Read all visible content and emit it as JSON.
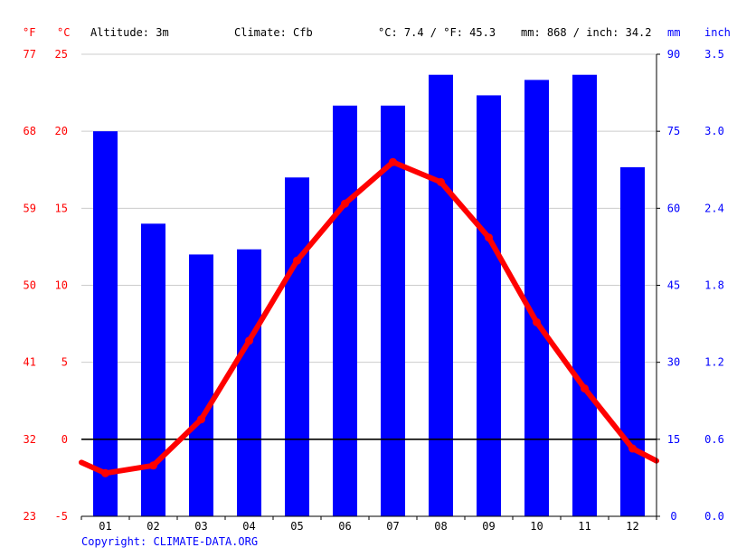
{
  "header": {
    "unit_f": "°F",
    "unit_c": "°C",
    "altitude": "Altitude: 3m",
    "climate": "Climate: Cfb",
    "avg_temp": "°C: 7.4 / °F: 45.3",
    "precip": "mm: 868 / inch: 34.2",
    "unit_mm": "mm",
    "unit_inch": "inch"
  },
  "copyright": "Copyright: CLIMATE-DATA.ORG",
  "colors": {
    "temperature": "#ff0000",
    "precipitation": "#0000ff",
    "grid": "#cccccc",
    "zero_line": "#000000"
  },
  "chart_data": {
    "type": "bar",
    "categories": [
      "01",
      "02",
      "03",
      "04",
      "05",
      "06",
      "07",
      "08",
      "09",
      "10",
      "11",
      "12"
    ],
    "series": [
      {
        "kind": "bar",
        "unit": "mm",
        "values": [
          75,
          57,
          51,
          52,
          66,
          80,
          80,
          86,
          82,
          85,
          86,
          68
        ]
      },
      {
        "kind": "line",
        "unit": "°C",
        "values": [
          -2.2,
          -1.7,
          1.3,
          6.4,
          11.6,
          15.3,
          18.0,
          16.7,
          13.1,
          7.6,
          3.3,
          -0.6
        ],
        "edge_left": -1.5,
        "edge_right": -1.4
      }
    ],
    "axes": {
      "celsius": {
        "ticks": [
          "-5",
          "0",
          "5",
          "10",
          "15",
          "20",
          "25"
        ],
        "range": [
          -5,
          25
        ]
      },
      "fahrenheit": {
        "ticks": [
          "23",
          "32",
          "41",
          "50",
          "59",
          "68",
          "77"
        ]
      },
      "mm": {
        "ticks": [
          "0",
          "15",
          "30",
          "45",
          "60",
          "75",
          "90"
        ],
        "range": [
          0,
          90
        ]
      },
      "inch": {
        "ticks": [
          "0.0",
          "0.6",
          "1.2",
          "1.8",
          "2.4",
          "3.0",
          "3.5"
        ]
      }
    },
    "grid": true
  }
}
